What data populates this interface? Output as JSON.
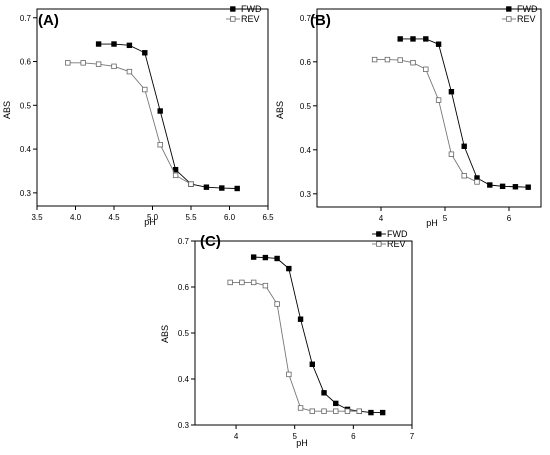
{
  "chart_data": [
    {
      "type": "line",
      "title": "(A)",
      "xlabel": "pH",
      "ylabel": "ABS",
      "xlim": [
        3.5,
        6.5
      ],
      "ylim": [
        0.27,
        0.72
      ],
      "xticks": [
        3.5,
        4.0,
        4.5,
        5.0,
        5.5,
        6.0,
        6.5
      ],
      "xtick_labels": [
        "3.5",
        "4.0",
        "4.5",
        "5.0",
        "5.5",
        "6.0",
        "6.5"
      ],
      "yticks": [
        0.3,
        0.4,
        0.5,
        0.6,
        0.7
      ],
      "ytick_labels": [
        "0.3",
        "0.4",
        "0.5",
        "0.6",
        "0.7"
      ],
      "legend_position": "top-right",
      "series": [
        {
          "name": "FWD",
          "marker": "filled-square",
          "x": [
            4.3,
            4.5,
            4.7,
            4.9,
            5.1,
            5.3,
            5.5,
            5.7,
            5.9,
            6.1
          ],
          "y": [
            0.64,
            0.64,
            0.637,
            0.62,
            0.487,
            0.353,
            0.32,
            0.313,
            0.311,
            0.31
          ]
        },
        {
          "name": "REV",
          "marker": "open-square",
          "x": [
            3.9,
            4.1,
            4.3,
            4.5,
            4.7,
            4.9,
            5.1,
            5.3,
            5.5
          ],
          "y": [
            0.597,
            0.597,
            0.594,
            0.589,
            0.577,
            0.536,
            0.41,
            0.34,
            0.32
          ]
        }
      ]
    },
    {
      "type": "line",
      "title": "(B)",
      "xlabel": "pH",
      "ylabel": "ABS",
      "xlim": [
        3,
        6.5
      ],
      "ylim": [
        0.27,
        0.72
      ],
      "xticks": [
        4,
        5,
        6
      ],
      "xtick_labels": [
        "4",
        "5",
        "6"
      ],
      "yticks": [
        0.3,
        0.4,
        0.5,
        0.6,
        0.7
      ],
      "ytick_labels": [
        "0.3",
        "0.4",
        "0.5",
        "0.6",
        "0.7"
      ],
      "legend_position": "top-right",
      "series": [
        {
          "name": "FWD",
          "marker": "filled-square",
          "x": [
            4.3,
            4.5,
            4.7,
            4.9,
            5.1,
            5.3,
            5.5,
            5.7,
            5.9,
            6.1,
            6.3
          ],
          "y": [
            0.652,
            0.652,
            0.652,
            0.64,
            0.532,
            0.408,
            0.336,
            0.32,
            0.317,
            0.316,
            0.315
          ]
        },
        {
          "name": "REV",
          "marker": "open-square",
          "x": [
            3.9,
            4.1,
            4.3,
            4.5,
            4.7,
            4.9,
            5.1,
            5.3,
            5.5
          ],
          "y": [
            0.605,
            0.605,
            0.604,
            0.598,
            0.583,
            0.513,
            0.39,
            0.341,
            0.327
          ]
        }
      ]
    },
    {
      "type": "line",
      "title": "(C)",
      "xlabel": "pH",
      "ylabel": "ABS",
      "xlim": [
        3.3,
        7
      ],
      "ylim": [
        0.3,
        0.7
      ],
      "xticks": [
        4,
        5,
        6,
        7
      ],
      "xtick_labels": [
        "4",
        "5",
        "6",
        "7"
      ],
      "yticks": [
        0.3,
        0.4,
        0.5,
        0.6,
        0.7
      ],
      "ytick_labels": [
        "0.3",
        "0.4",
        "0.5",
        "0.6",
        "0.7"
      ],
      "legend_position": "top-right",
      "series": [
        {
          "name": "FWD",
          "marker": "filled-square",
          "x": [
            4.3,
            4.5,
            4.7,
            4.9,
            5.1,
            5.3,
            5.5,
            5.7,
            5.9,
            6.1,
            6.3,
            6.5
          ],
          "y": [
            0.665,
            0.664,
            0.662,
            0.64,
            0.53,
            0.432,
            0.37,
            0.347,
            0.334,
            0.33,
            0.327,
            0.327
          ]
        },
        {
          "name": "REV",
          "marker": "open-square",
          "x": [
            3.9,
            4.1,
            4.3,
            4.5,
            4.7,
            4.9,
            5.1,
            5.3,
            5.5,
            5.7,
            5.9,
            6.1
          ],
          "y": [
            0.61,
            0.61,
            0.61,
            0.603,
            0.563,
            0.41,
            0.337,
            0.33,
            0.33,
            0.33,
            0.33,
            0.33
          ]
        }
      ]
    }
  ]
}
